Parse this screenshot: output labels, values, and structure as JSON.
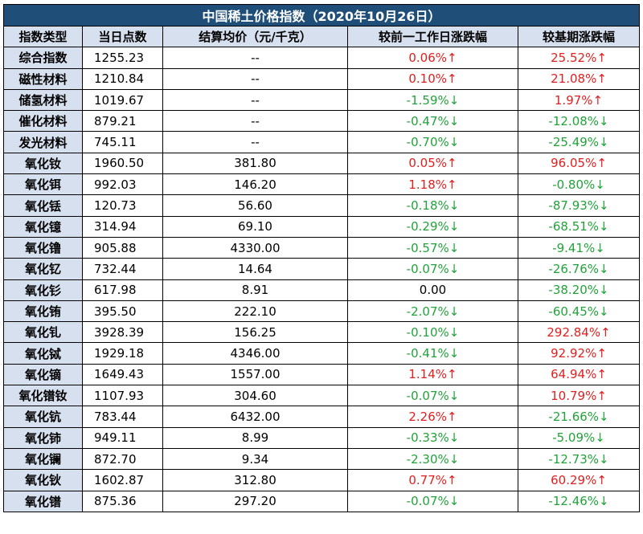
{
  "title": "中国稀土价格指数（2020年10月26日）",
  "headers": [
    "指数类型",
    "当日点数",
    "结算均价（元/千克）",
    "较前一工作日涨跌幅",
    "较基期涨跌幅"
  ],
  "colors": {
    "up": "#e02020",
    "down": "#22a23a",
    "header_bg": "#d6e0ef",
    "title_bg": "#1f4e79"
  },
  "rows": [
    {
      "type": "综合指数",
      "points": "1255.23",
      "avg": "--",
      "day": "0.06%↑",
      "day_dir": "up",
      "base": "25.52%↑",
      "base_dir": "up"
    },
    {
      "type": "磁性材料",
      "points": "1210.84",
      "avg": "--",
      "day": "0.10%↑",
      "day_dir": "up",
      "base": "21.08%↑",
      "base_dir": "up"
    },
    {
      "type": "储氢材料",
      "points": "1019.67",
      "avg": "--",
      "day": "-1.59%↓",
      "day_dir": "down",
      "base": "1.97%↑",
      "base_dir": "up"
    },
    {
      "type": "催化材料",
      "points": "879.21",
      "avg": "--",
      "day": "-0.47%↓",
      "day_dir": "down",
      "base": "-12.08%↓",
      "base_dir": "down"
    },
    {
      "type": "发光材料",
      "points": "745.11",
      "avg": "--",
      "day": "-0.70%↓",
      "day_dir": "down",
      "base": "-25.49%↓",
      "base_dir": "down"
    },
    {
      "type": "氧化钕",
      "points": "1960.50",
      "avg": "381.80",
      "day": "0.05%↑",
      "day_dir": "up",
      "base": "96.05%↑",
      "base_dir": "up"
    },
    {
      "type": "氧化铒",
      "points": "992.03",
      "avg": "146.20",
      "day": "1.18%↑",
      "day_dir": "up",
      "base": "-0.80%↓",
      "base_dir": "down"
    },
    {
      "type": "氧化铥",
      "points": "120.73",
      "avg": "56.60",
      "day": "-0.18%↓",
      "day_dir": "down",
      "base": "-87.93%↓",
      "base_dir": "down"
    },
    {
      "type": "氧化镱",
      "points": "314.94",
      "avg": "69.10",
      "day": "-0.29%↓",
      "day_dir": "down",
      "base": "-68.51%↓",
      "base_dir": "down"
    },
    {
      "type": "氧化镥",
      "points": "905.88",
      "avg": "4330.00",
      "day": "-0.57%↓",
      "day_dir": "down",
      "base": "-9.41%↓",
      "base_dir": "down"
    },
    {
      "type": "氧化钇",
      "points": "732.44",
      "avg": "14.64",
      "day": "-0.07%↓",
      "day_dir": "down",
      "base": "-26.76%↓",
      "base_dir": "down"
    },
    {
      "type": "氧化钐",
      "points": "617.98",
      "avg": "8.91",
      "day": "0.00",
      "day_dir": "flat",
      "base": "-38.20%↓",
      "base_dir": "down"
    },
    {
      "type": "氧化铕",
      "points": "395.50",
      "avg": "222.10",
      "day": "-2.07%↓",
      "day_dir": "down",
      "base": "-60.45%↓",
      "base_dir": "down"
    },
    {
      "type": "氧化钆",
      "points": "3928.39",
      "avg": "156.25",
      "day": "-0.10%↓",
      "day_dir": "down",
      "base": "292.84%↑",
      "base_dir": "up"
    },
    {
      "type": "氧化铽",
      "points": "1929.18",
      "avg": "4346.00",
      "day": "-0.41%↓",
      "day_dir": "down",
      "base": "92.92%↑",
      "base_dir": "up"
    },
    {
      "type": "氧化镝",
      "points": "1649.43",
      "avg": "1557.00",
      "day": "1.14%↑",
      "day_dir": "up",
      "base": "64.94%↑",
      "base_dir": "up"
    },
    {
      "type": "氧化镨钕",
      "points": "1107.93",
      "avg": "304.60",
      "day": "-0.07%↓",
      "day_dir": "down",
      "base": "10.79%↑",
      "base_dir": "up"
    },
    {
      "type": "氧化钪",
      "points": "783.44",
      "avg": "6432.00",
      "day": "2.26%↑",
      "day_dir": "up",
      "base": "-21.66%↓",
      "base_dir": "down"
    },
    {
      "type": "氧化铈",
      "points": "949.11",
      "avg": "8.99",
      "day": "-0.33%↓",
      "day_dir": "down",
      "base": "-5.09%↓",
      "base_dir": "down"
    },
    {
      "type": "氧化镧",
      "points": "872.70",
      "avg": "9.34",
      "day": "-2.30%↓",
      "day_dir": "down",
      "base": "-12.73%↓",
      "base_dir": "down"
    },
    {
      "type": "氧化钬",
      "points": "1602.87",
      "avg": "312.80",
      "day": "0.77%↑",
      "day_dir": "up",
      "base": "60.29%↑",
      "base_dir": "up"
    },
    {
      "type": "氧化镨",
      "points": "875.36",
      "avg": "297.20",
      "day": "-0.07%↓",
      "day_dir": "down",
      "base": "-12.46%↓",
      "base_dir": "down"
    }
  ]
}
